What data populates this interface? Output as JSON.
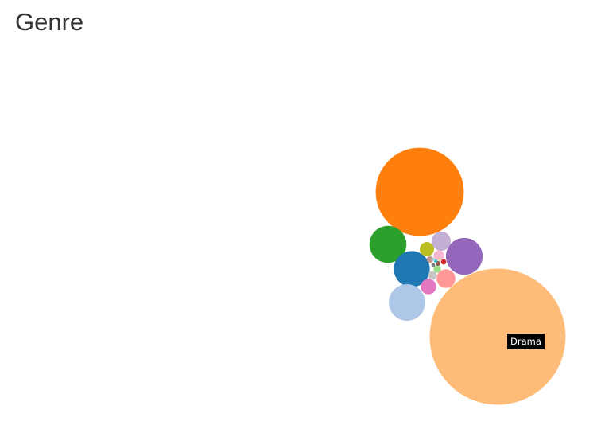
{
  "title": "Genre",
  "chart_data": {
    "type": "bubble",
    "title": "Genre",
    "tooltip": "Drama",
    "series": [
      {
        "value": 100,
        "color": "#ffbb78"
      },
      {
        "value": 42,
        "color": "#ff7f0e"
      },
      {
        "value": 7.4,
        "color": "#2ca02c"
      },
      {
        "value": 7.0,
        "color": "#1f77b4"
      },
      {
        "value": 7.2,
        "color": "#aec7e8"
      },
      {
        "value": 7.3,
        "color": "#9467bd"
      },
      {
        "value": 2.0,
        "color": "#c5b0d5"
      },
      {
        "value": 1.9,
        "color": "#ff9896"
      },
      {
        "value": 1.3,
        "color": "#e377c2"
      },
      {
        "value": 1.1,
        "color": "#bcbd22"
      },
      {
        "value": 0.6,
        "color": "#f7b6d2"
      },
      {
        "value": 0.4,
        "color": "#c7c7c7"
      },
      {
        "value": 0.3,
        "color": "#98df8a"
      },
      {
        "value": 0.25,
        "color": "#c49c94"
      },
      {
        "value": 0.15,
        "color": "#d62728"
      },
      {
        "value": 0.12,
        "color": "#8c564b"
      },
      {
        "value": 0.08,
        "color": "#7f7f7f"
      },
      {
        "value": 0.05,
        "color": "#17becf"
      },
      {
        "value": 0.05,
        "color": "#9edae5"
      },
      {
        "value": 0.04,
        "color": "#dbdb8d"
      }
    ]
  }
}
